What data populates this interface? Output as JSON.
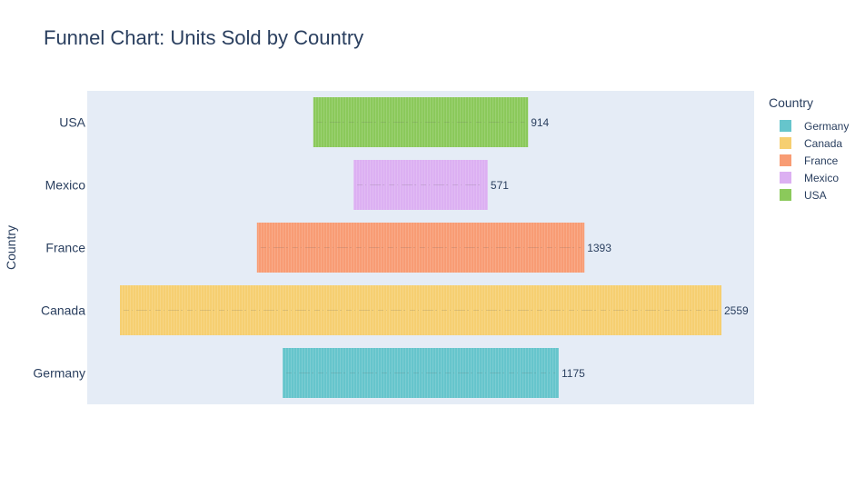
{
  "chart_data": {
    "type": "funnel",
    "title": "Funnel Chart: Units Sold by Country",
    "ylabel": "Country",
    "categories": [
      "USA",
      "Mexico",
      "France",
      "Canada",
      "Germany"
    ],
    "values": [
      914,
      571,
      1393,
      2559,
      1175
    ],
    "colors": [
      "#8bc95b",
      "#dcb0f2",
      "#f89c74",
      "#f6cf71",
      "#66c5cc"
    ],
    "grid": false,
    "legend": {
      "title": "Country",
      "placement": "right",
      "items": [
        {
          "label": "Germany",
          "color": "#66c5cc"
        },
        {
          "label": "Canada",
          "color": "#f6cf71"
        },
        {
          "label": "France",
          "color": "#f89c74"
        },
        {
          "label": "Mexico",
          "color": "#dcb0f2"
        },
        {
          "label": "USA",
          "color": "#8bc95b"
        }
      ]
    }
  }
}
